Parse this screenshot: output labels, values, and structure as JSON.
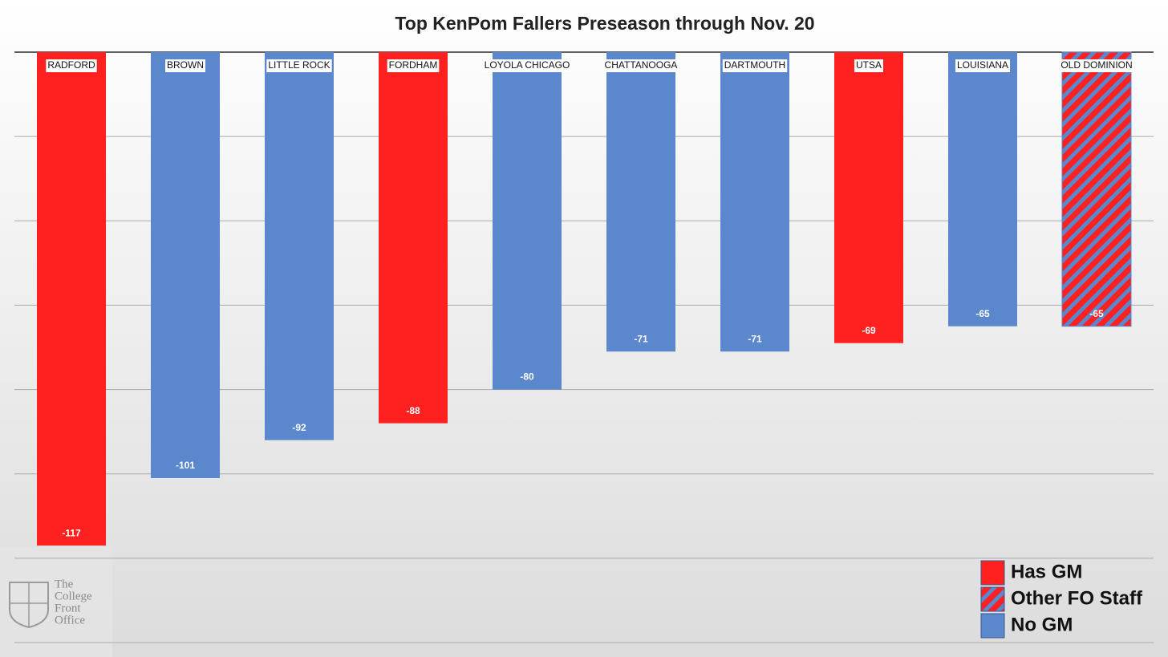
{
  "chart_data": {
    "type": "bar",
    "title": "Top KenPom Fallers Preseason through Nov. 20",
    "categories": [
      "RADFORD",
      "BROWN",
      "LITTLE ROCK",
      "FORDHAM",
      "LOYOLA CHICAGO",
      "CHATTANOOGA",
      "DARTMOUTH",
      "UTSA",
      "LOUISIANA",
      "OLD DOMINION"
    ],
    "series": [
      {
        "name": "Has GM",
        "color": "#ff2020",
        "values": [
          -117,
          null,
          null,
          -88,
          null,
          null,
          null,
          -69,
          null,
          null
        ]
      },
      {
        "name": "Other FO Staff",
        "color": "#ff2020",
        "hatch_color": "#5b87cc",
        "values": [
          null,
          null,
          null,
          null,
          null,
          null,
          null,
          null,
          null,
          -65
        ]
      },
      {
        "name": "No GM",
        "color": "#5b87cc",
        "values": [
          null,
          -101,
          -92,
          null,
          -80,
          -71,
          -71,
          null,
          -65,
          null
        ]
      }
    ],
    "ylim": [
      -140,
      0
    ],
    "yticks": [
      -140,
      -120,
      -100,
      -80,
      -60,
      -40,
      -20,
      0
    ],
    "grid": true,
    "legend": "bottom-right"
  },
  "logo": {
    "lines": [
      "The",
      "College",
      "Front",
      "Office"
    ]
  }
}
